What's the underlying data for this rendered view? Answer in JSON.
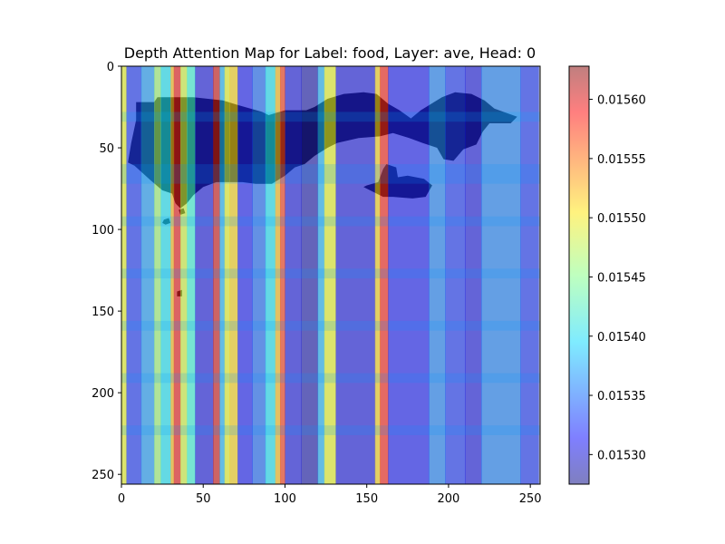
{
  "chart_data": {
    "type": "heatmap",
    "title": "Depth Attention Map for Label: food, Layer: ave, Head: 0",
    "xlabel": "",
    "ylabel": "",
    "xlim": [
      0,
      255
    ],
    "ylim": [
      255,
      0
    ],
    "x_ticks": [
      0,
      50,
      100,
      150,
      200,
      250
    ],
    "y_ticks": [
      0,
      50,
      100,
      150,
      200,
      250
    ],
    "colorbar": {
      "range": [
        0.015275,
        0.015628
      ],
      "ticks": [
        "0.01530",
        "0.01535",
        "0.01540",
        "0.01545",
        "0.01550",
        "0.01555",
        "0.01560"
      ],
      "tick_values": [
        0.0153,
        0.01535,
        0.0154,
        0.01545,
        0.0155,
        0.01555,
        0.0156
      ],
      "colormap": "jet",
      "alpha": 0.5
    },
    "column_bands": [
      {
        "x0": 0,
        "x1": 3,
        "value": 0.01549
      },
      {
        "x0": 3,
        "x1": 12,
        "value": 0.01533
      },
      {
        "x0": 12,
        "x1": 20,
        "value": 0.01537
      },
      {
        "x0": 20,
        "x1": 24,
        "value": 0.01546
      },
      {
        "x0": 24,
        "x1": 30,
        "value": 0.0154
      },
      {
        "x0": 30,
        "x1": 32,
        "value": 0.01552
      },
      {
        "x0": 32,
        "x1": 36,
        "value": 0.01559
      },
      {
        "x0": 36,
        "x1": 40,
        "value": 0.01548
      },
      {
        "x0": 40,
        "x1": 45,
        "value": 0.01542
      },
      {
        "x0": 45,
        "x1": 56,
        "value": 0.01531
      },
      {
        "x0": 56,
        "x1": 60,
        "value": 0.0156
      },
      {
        "x0": 60,
        "x1": 63,
        "value": 0.01538
      },
      {
        "x0": 63,
        "x1": 66,
        "value": 0.01549
      },
      {
        "x0": 66,
        "x1": 71,
        "value": 0.01551
      },
      {
        "x0": 71,
        "x1": 80,
        "value": 0.01532
      },
      {
        "x0": 80,
        "x1": 88,
        "value": 0.01535
      },
      {
        "x0": 88,
        "x1": 94,
        "value": 0.0154
      },
      {
        "x0": 94,
        "x1": 97,
        "value": 0.01552
      },
      {
        "x0": 97,
        "x1": 100,
        "value": 0.01557
      },
      {
        "x0": 100,
        "x1": 110,
        "value": 0.01531
      },
      {
        "x0": 110,
        "x1": 120,
        "value": 0.01529
      },
      {
        "x0": 120,
        "x1": 124,
        "value": 0.01538
      },
      {
        "x0": 124,
        "x1": 131,
        "value": 0.01549
      },
      {
        "x0": 131,
        "x1": 155,
        "value": 0.01531
      },
      {
        "x0": 155,
        "x1": 158,
        "value": 0.01551
      },
      {
        "x0": 158,
        "x1": 163,
        "value": 0.01558
      },
      {
        "x0": 163,
        "x1": 188,
        "value": 0.01532
      },
      {
        "x0": 188,
        "x1": 198,
        "value": 0.01536
      },
      {
        "x0": 198,
        "x1": 210,
        "value": 0.01533
      },
      {
        "x0": 210,
        "x1": 220,
        "value": 0.01531
      },
      {
        "x0": 220,
        "x1": 244,
        "value": 0.01536
      },
      {
        "x0": 244,
        "x1": 255,
        "value": 0.01533
      }
    ],
    "row_tints": [
      {
        "y0": 28,
        "y1": 34,
        "value": 0.01538
      },
      {
        "y0": 60,
        "y1": 72,
        "value": 0.01537
      },
      {
        "y0": 92,
        "y1": 98,
        "value": 0.01537
      },
      {
        "y0": 124,
        "y1": 130,
        "value": 0.01537
      },
      {
        "y0": 156,
        "y1": 162,
        "value": 0.01537
      },
      {
        "y0": 188,
        "y1": 194,
        "value": 0.01537
      },
      {
        "y0": 220,
        "y1": 226,
        "value": 0.01537
      }
    ],
    "object_regions": [
      {
        "name": "main-mass",
        "points": [
          [
            4,
            59
          ],
          [
            6,
            47
          ],
          [
            9,
            33
          ],
          [
            9,
            22
          ],
          [
            20,
            22
          ],
          [
            22,
            19
          ],
          [
            44,
            19
          ],
          [
            62,
            21
          ],
          [
            72,
            24
          ],
          [
            86,
            28
          ],
          [
            90,
            30
          ],
          [
            100,
            27
          ],
          [
            113,
            27
          ],
          [
            118,
            25
          ],
          [
            126,
            20
          ],
          [
            136,
            17
          ],
          [
            148,
            16
          ],
          [
            156,
            17
          ],
          [
            163,
            23
          ],
          [
            170,
            27
          ],
          [
            177,
            32
          ],
          [
            183,
            27
          ],
          [
            196,
            19
          ],
          [
            204,
            16
          ],
          [
            214,
            17
          ],
          [
            222,
            21
          ],
          [
            228,
            26
          ],
          [
            242,
            31
          ],
          [
            238,
            35
          ],
          [
            225,
            35
          ],
          [
            221,
            40
          ],
          [
            217,
            48
          ],
          [
            209,
            51
          ],
          [
            203,
            58
          ],
          [
            197,
            57
          ],
          [
            193,
            50
          ],
          [
            184,
            47
          ],
          [
            176,
            44
          ],
          [
            166,
            41
          ],
          [
            158,
            43
          ],
          [
            145,
            44
          ],
          [
            132,
            47
          ],
          [
            126,
            50
          ],
          [
            118,
            55
          ],
          [
            112,
            60
          ],
          [
            106,
            62
          ],
          [
            100,
            67
          ],
          [
            92,
            72
          ],
          [
            82,
            72
          ],
          [
            74,
            71
          ],
          [
            58,
            71
          ],
          [
            50,
            74
          ],
          [
            44,
            79
          ],
          [
            40,
            84
          ],
          [
            36,
            87
          ],
          [
            33,
            84
          ],
          [
            31,
            78
          ],
          [
            25,
            76
          ],
          [
            18,
            70
          ],
          [
            8,
            61
          ]
        ]
      },
      {
        "name": "right-blob",
        "points": [
          [
            150,
            73
          ],
          [
            157,
            71
          ],
          [
            160,
            63
          ],
          [
            162,
            60
          ],
          [
            168,
            62
          ],
          [
            169,
            68
          ],
          [
            175,
            67
          ],
          [
            185,
            69
          ],
          [
            190,
            73
          ],
          [
            186,
            80
          ],
          [
            178,
            81
          ],
          [
            166,
            80
          ],
          [
            160,
            80
          ],
          [
            152,
            76
          ],
          [
            148,
            74
          ]
        ]
      },
      {
        "name": "speck-1",
        "points": [
          [
            26,
            94
          ],
          [
            29,
            93
          ],
          [
            30,
            96
          ],
          [
            27,
            97
          ],
          [
            25,
            96
          ]
        ]
      },
      {
        "name": "speck-2",
        "points": [
          [
            35,
            88
          ],
          [
            38,
            87
          ],
          [
            39,
            90
          ],
          [
            36,
            91
          ]
        ]
      },
      {
        "name": "speck-3",
        "points": [
          [
            34,
            138
          ],
          [
            37,
            137
          ],
          [
            37,
            141
          ],
          [
            34,
            141
          ]
        ]
      }
    ]
  }
}
